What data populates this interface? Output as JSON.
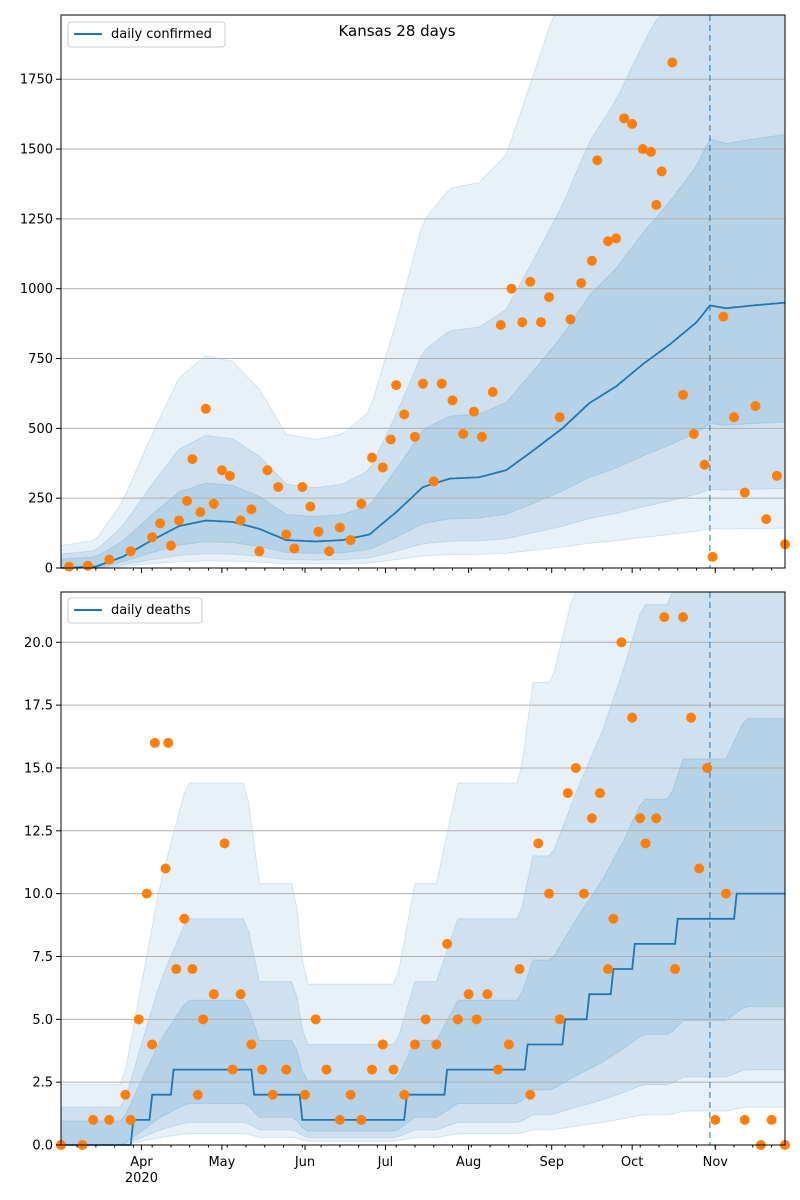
{
  "chart_data": [
    {
      "type": "line",
      "title": "Kansas 28 days",
      "legend": [
        "daily confirmed"
      ],
      "legend_placement": "top-left",
      "grid": "horizontal",
      "x_range": [
        "2020-03-02",
        "2020-11-27"
      ],
      "ylim": [
        0,
        1980
      ],
      "yticks": [
        0,
        250,
        500,
        750,
        1000,
        1250,
        1500,
        1750
      ],
      "ytick_labels": [
        "0",
        "250",
        "500",
        "750",
        "1000",
        "1250",
        "1500",
        "1750"
      ],
      "forecast_start": "2020-10-30",
      "line_color": "#1f77b4",
      "point_color": "#ff7f0e",
      "series": [
        {
          "name": "daily confirmed",
          "points": [
            [
              "2020-03-02",
              0
            ],
            [
              "2020-03-15",
              5
            ],
            [
              "2020-03-25",
              40
            ],
            [
              "2020-04-05",
              100
            ],
            [
              "2020-04-15",
              150
            ],
            [
              "2020-04-25",
              170
            ],
            [
              "2020-05-05",
              165
            ],
            [
              "2020-05-15",
              140
            ],
            [
              "2020-05-25",
              100
            ],
            [
              "2020-06-05",
              95
            ],
            [
              "2020-06-15",
              100
            ],
            [
              "2020-06-25",
              120
            ],
            [
              "2020-07-05",
              200
            ],
            [
              "2020-07-15",
              290
            ],
            [
              "2020-07-25",
              320
            ],
            [
              "2020-08-05",
              325
            ],
            [
              "2020-08-15",
              350
            ],
            [
              "2020-08-25",
              420
            ],
            [
              "2020-09-05",
              500
            ],
            [
              "2020-09-15",
              590
            ],
            [
              "2020-09-25",
              650
            ],
            [
              "2020-10-05",
              730
            ],
            [
              "2020-10-15",
              800
            ],
            [
              "2020-10-25",
              880
            ],
            [
              "2020-10-30",
              940
            ],
            [
              "2020-11-05",
              930
            ],
            [
              "2020-11-15",
              940
            ],
            [
              "2020-11-27",
              950
            ]
          ]
        }
      ],
      "observations": [
        [
          "2020-03-05",
          5
        ],
        [
          "2020-03-12",
          8
        ],
        [
          "2020-03-20",
          30
        ],
        [
          "2020-03-28",
          60
        ],
        [
          "2020-04-05",
          110
        ],
        [
          "2020-04-08",
          160
        ],
        [
          "2020-04-12",
          80
        ],
        [
          "2020-04-15",
          170
        ],
        [
          "2020-04-18",
          240
        ],
        [
          "2020-04-20",
          390
        ],
        [
          "2020-04-23",
          200
        ],
        [
          "2020-04-25",
          570
        ],
        [
          "2020-04-28",
          230
        ],
        [
          "2020-05-01",
          350
        ],
        [
          "2020-05-04",
          330
        ],
        [
          "2020-05-08",
          170
        ],
        [
          "2020-05-12",
          210
        ],
        [
          "2020-05-15",
          60
        ],
        [
          "2020-05-18",
          350
        ],
        [
          "2020-05-22",
          290
        ],
        [
          "2020-05-25",
          120
        ],
        [
          "2020-05-28",
          70
        ],
        [
          "2020-05-31",
          290
        ],
        [
          "2020-06-03",
          220
        ],
        [
          "2020-06-06",
          130
        ],
        [
          "2020-06-10",
          60
        ],
        [
          "2020-06-14",
          145
        ],
        [
          "2020-06-18",
          100
        ],
        [
          "2020-06-22",
          230
        ],
        [
          "2020-06-26",
          395
        ],
        [
          "2020-06-30",
          360
        ],
        [
          "2020-07-03",
          460
        ],
        [
          "2020-07-05",
          655
        ],
        [
          "2020-07-08",
          550
        ],
        [
          "2020-07-12",
          470
        ],
        [
          "2020-07-15",
          660
        ],
        [
          "2020-07-19",
          310
        ],
        [
          "2020-07-22",
          660
        ],
        [
          "2020-07-26",
          600
        ],
        [
          "2020-07-30",
          480
        ],
        [
          "2020-08-03",
          560
        ],
        [
          "2020-08-06",
          470
        ],
        [
          "2020-08-10",
          630
        ],
        [
          "2020-08-13",
          870
        ],
        [
          "2020-08-17",
          1000
        ],
        [
          "2020-08-21",
          880
        ],
        [
          "2020-08-24",
          1025
        ],
        [
          "2020-08-28",
          880
        ],
        [
          "2020-08-31",
          970
        ],
        [
          "2020-09-04",
          540
        ],
        [
          "2020-09-08",
          890
        ],
        [
          "2020-09-12",
          1020
        ],
        [
          "2020-09-16",
          1100
        ],
        [
          "2020-09-18",
          1460
        ],
        [
          "2020-09-22",
          1170
        ],
        [
          "2020-09-25",
          1180
        ],
        [
          "2020-09-28",
          1610
        ],
        [
          "2020-10-01",
          1590
        ],
        [
          "2020-10-05",
          1500
        ],
        [
          "2020-10-08",
          1490
        ],
        [
          "2020-10-10",
          1300
        ],
        [
          "2020-10-12",
          1420
        ],
        [
          "2020-10-16",
          1810
        ],
        [
          "2020-10-20",
          620
        ],
        [
          "2020-10-24",
          480
        ],
        [
          "2020-10-28",
          370
        ],
        [
          "2020-10-31",
          40
        ],
        [
          "2020-11-04",
          900
        ],
        [
          "2020-11-08",
          540
        ],
        [
          "2020-11-12",
          270
        ],
        [
          "2020-11-16",
          580
        ],
        [
          "2020-11-20",
          175
        ],
        [
          "2020-11-24",
          330
        ],
        [
          "2020-11-27",
          85
        ]
      ]
    },
    {
      "type": "line",
      "legend": [
        "daily deaths"
      ],
      "legend_placement": "top-left",
      "grid": "horizontal",
      "x_range": [
        "2020-03-02",
        "2020-11-27"
      ],
      "xtick_labels": [
        "Apr\n2020",
        "May",
        "Jun",
        "Jul",
        "Aug",
        "Sep",
        "Oct",
        "Nov"
      ],
      "ylim": [
        0,
        22
      ],
      "yticks": [
        0,
        2.5,
        5,
        7.5,
        10,
        12.5,
        15,
        17.5,
        20
      ],
      "ytick_labels": [
        "0.0",
        "2.5",
        "5.0",
        "7.5",
        "10.0",
        "12.5",
        "15.0",
        "17.5",
        "20.0"
      ],
      "forecast_start": "2020-10-30",
      "line_color": "#1f77b4",
      "point_color": "#ff7f0e",
      "series": [
        {
          "name": "daily deaths",
          "points": [
            [
              "2020-03-02",
              0
            ],
            [
              "2020-03-25",
              0
            ],
            [
              "2020-04-01",
              1
            ],
            [
              "2020-04-08",
              2
            ],
            [
              "2020-04-18",
              3
            ],
            [
              "2020-04-28",
              3
            ],
            [
              "2020-05-10",
              3
            ],
            [
              "2020-05-15",
              2
            ],
            [
              "2020-05-28",
              2
            ],
            [
              "2020-06-01",
              1
            ],
            [
              "2020-06-20",
              1
            ],
            [
              "2020-07-05",
              1
            ],
            [
              "2020-07-12",
              2
            ],
            [
              "2020-07-20",
              2
            ],
            [
              "2020-07-28",
              3
            ],
            [
              "2020-08-05",
              3
            ],
            [
              "2020-08-20",
              3
            ],
            [
              "2020-08-25",
              4
            ],
            [
              "2020-09-01",
              4
            ],
            [
              "2020-09-10",
              5
            ],
            [
              "2020-09-20",
              6
            ],
            [
              "2020-09-28",
              7
            ],
            [
              "2020-10-05",
              8
            ],
            [
              "2020-10-15",
              8
            ],
            [
              "2020-10-20",
              9
            ],
            [
              "2020-10-30",
              9
            ],
            [
              "2020-11-05",
              9
            ],
            [
              "2020-11-12",
              10
            ],
            [
              "2020-11-20",
              10
            ],
            [
              "2020-11-27",
              10
            ]
          ]
        }
      ],
      "observations": [
        [
          "2020-03-02",
          0
        ],
        [
          "2020-03-10",
          0
        ],
        [
          "2020-03-14",
          1
        ],
        [
          "2020-03-20",
          1
        ],
        [
          "2020-03-26",
          2
        ],
        [
          "2020-03-28",
          1
        ],
        [
          "2020-03-31",
          5
        ],
        [
          "2020-04-03",
          10
        ],
        [
          "2020-04-05",
          4
        ],
        [
          "2020-04-06",
          16
        ],
        [
          "2020-04-10",
          11
        ],
        [
          "2020-04-11",
          16
        ],
        [
          "2020-04-14",
          7
        ],
        [
          "2020-04-17",
          9
        ],
        [
          "2020-04-20",
          7
        ],
        [
          "2020-04-22",
          2
        ],
        [
          "2020-04-24",
          5
        ],
        [
          "2020-04-28",
          6
        ],
        [
          "2020-05-02",
          12
        ],
        [
          "2020-05-05",
          3
        ],
        [
          "2020-05-08",
          6
        ],
        [
          "2020-05-12",
          4
        ],
        [
          "2020-05-16",
          3
        ],
        [
          "2020-05-20",
          2
        ],
        [
          "2020-05-25",
          3
        ],
        [
          "2020-06-01",
          2
        ],
        [
          "2020-06-05",
          5
        ],
        [
          "2020-06-09",
          3
        ],
        [
          "2020-06-14",
          1
        ],
        [
          "2020-06-18",
          2
        ],
        [
          "2020-06-22",
          1
        ],
        [
          "2020-06-26",
          3
        ],
        [
          "2020-06-30",
          4
        ],
        [
          "2020-07-04",
          3
        ],
        [
          "2020-07-08",
          2
        ],
        [
          "2020-07-12",
          4
        ],
        [
          "2020-07-16",
          5
        ],
        [
          "2020-07-20",
          4
        ],
        [
          "2020-07-24",
          8
        ],
        [
          "2020-07-28",
          5
        ],
        [
          "2020-08-01",
          6
        ],
        [
          "2020-08-04",
          5
        ],
        [
          "2020-08-08",
          6
        ],
        [
          "2020-08-12",
          3
        ],
        [
          "2020-08-16",
          4
        ],
        [
          "2020-08-20",
          7
        ],
        [
          "2020-08-24",
          2
        ],
        [
          "2020-08-27",
          12
        ],
        [
          "2020-08-31",
          10
        ],
        [
          "2020-09-04",
          5
        ],
        [
          "2020-09-07",
          14
        ],
        [
          "2020-09-10",
          15
        ],
        [
          "2020-09-13",
          10
        ],
        [
          "2020-09-16",
          13
        ],
        [
          "2020-09-19",
          14
        ],
        [
          "2020-09-22",
          7
        ],
        [
          "2020-09-24",
          9
        ],
        [
          "2020-09-27",
          20
        ],
        [
          "2020-10-01",
          17
        ],
        [
          "2020-10-04",
          13
        ],
        [
          "2020-10-06",
          12
        ],
        [
          "2020-10-10",
          13
        ],
        [
          "2020-10-13",
          21
        ],
        [
          "2020-10-17",
          7
        ],
        [
          "2020-10-20",
          21
        ],
        [
          "2020-10-23",
          17
        ],
        [
          "2020-10-26",
          11
        ],
        [
          "2020-10-29",
          15
        ],
        [
          "2020-11-01",
          1
        ],
        [
          "2020-11-05",
          10
        ],
        [
          "2020-11-12",
          1
        ],
        [
          "2020-11-18",
          0
        ],
        [
          "2020-11-22",
          1
        ],
        [
          "2020-11-27",
          0
        ]
      ]
    }
  ]
}
